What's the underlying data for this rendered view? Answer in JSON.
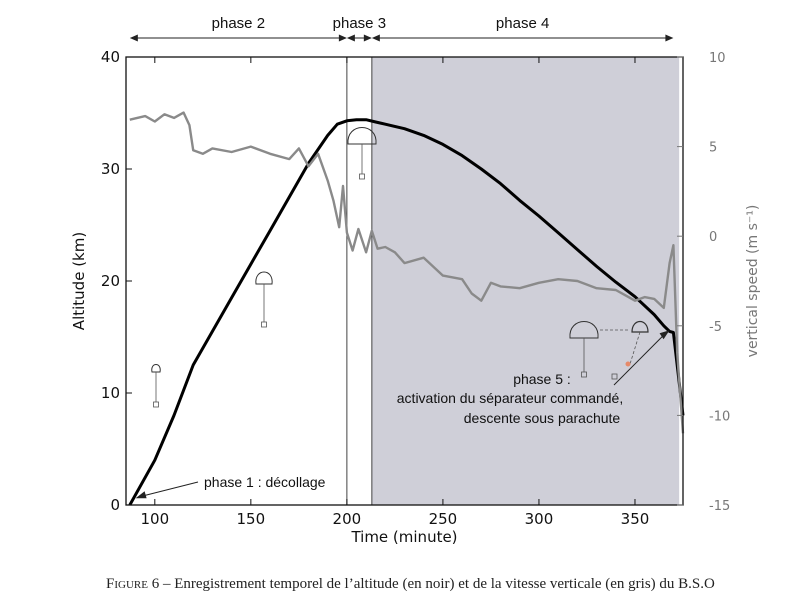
{
  "chart_data": {
    "type": "line",
    "xlabel": "Time (minute)",
    "ylabel": "Altitude (km)",
    "ylabel_right": "vertical speed (m s⁻¹)",
    "xlim": [
      85,
      375
    ],
    "ylim": [
      0,
      40
    ],
    "ylim_right": [
      -15,
      10
    ],
    "x_ticks": [
      100,
      150,
      200,
      250,
      300,
      350
    ],
    "y_ticks": [
      0,
      10,
      20,
      30,
      40
    ],
    "y_ticks_right": [
      -15,
      -10,
      -5,
      0,
      5,
      10
    ],
    "series": [
      {
        "axis": "left",
        "color": "#000000",
        "x": [
          87,
          100,
          110,
          120,
          130,
          140,
          150,
          160,
          170,
          180,
          190,
          195,
          200,
          205,
          210,
          215,
          220,
          230,
          240,
          250,
          260,
          270,
          280,
          290,
          300,
          310,
          320,
          330,
          340,
          350,
          360,
          365,
          368,
          370,
          375
        ],
        "y": [
          0,
          4,
          8,
          12.5,
          15.5,
          18.5,
          21.5,
          24.5,
          27.5,
          30.5,
          33,
          34,
          34.3,
          34.4,
          34.4,
          34.2,
          34,
          33.6,
          33,
          32.2,
          31.2,
          30,
          28.7,
          27.2,
          25.8,
          24.3,
          22.8,
          21.3,
          19.9,
          18.6,
          17,
          16,
          15.5,
          15.4,
          8
        ]
      },
      {
        "axis": "right",
        "color": "#8a8a8a",
        "x": [
          87,
          95,
          100,
          105,
          110,
          115,
          118,
          120,
          125,
          130,
          140,
          150,
          160,
          170,
          175,
          180,
          185,
          190,
          193,
          196,
          198,
          200,
          203,
          206,
          210,
          213,
          216,
          220,
          225,
          230,
          240,
          250,
          260,
          265,
          270,
          275,
          280,
          290,
          300,
          310,
          320,
          330,
          340,
          345,
          350,
          355,
          360,
          365,
          368,
          370,
          372,
          375
        ],
        "y": [
          6.5,
          6.7,
          6.4,
          6.8,
          6.6,
          6.9,
          6.2,
          4.8,
          4.6,
          4.9,
          4.7,
          5.0,
          4.6,
          4.3,
          4.9,
          3.9,
          4.6,
          3.1,
          2.0,
          0.5,
          2.8,
          0.2,
          -0.8,
          0.4,
          -0.9,
          0.3,
          -0.7,
          -0.6,
          -0.9,
          -1.5,
          -1.2,
          -2.2,
          -2.4,
          -3.2,
          -3.6,
          -2.6,
          -2.8,
          -2.9,
          -2.6,
          -2.4,
          -2.5,
          -2.9,
          -3.0,
          -3.3,
          -3.6,
          -3.4,
          -3.5,
          -4.0,
          -1.5,
          -0.5,
          -6.5,
          -11
        ]
      }
    ],
    "phases": [
      {
        "label": "phase 2",
        "x_start": 87,
        "x_end": 200
      },
      {
        "label": "phase 3",
        "x_start": 200,
        "x_end": 213
      },
      {
        "label": "phase 4",
        "x_start": 213,
        "x_end": 370
      }
    ],
    "annotations": {
      "phase1": "phase 1 : décollage",
      "phase5_line1": "phase 5 :",
      "phase5_line2": "activation du séparateur commandé,",
      "phase5_line3": "descente sous parachute"
    },
    "shaded_region": {
      "x_start": 213,
      "x_end": 373,
      "color": "#cfcfd8"
    }
  },
  "caption": {
    "prefix": "Figure",
    "text": " 6 – Enregistrement temporel de l’altitude (en noir) et de la vitesse verticale (en gris) du B.S.O"
  }
}
